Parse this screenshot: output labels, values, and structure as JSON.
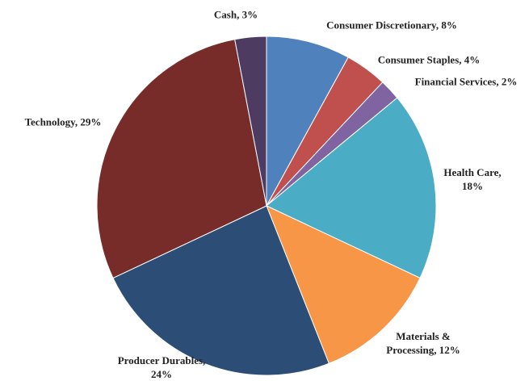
{
  "chart_data": {
    "type": "pie",
    "values": [
      8,
      4,
      2,
      18,
      12,
      24,
      29,
      3
    ],
    "value_labels": [
      "Consumer Discretionary, 8%",
      "Consumer Staples, 4%",
      "Financial Services, 2%",
      "Health Care, 18%",
      "Materials & Processing, 12%",
      "Producer Durables, 24%",
      "Technology, 29%",
      "Cash, 3%"
    ],
    "colors": [
      "#4f81bd",
      "#c0504d",
      "#8064a2",
      "#4bacc6",
      "#f79646",
      "#2c4d75",
      "#772c2a",
      "#4d3b62"
    ]
  }
}
